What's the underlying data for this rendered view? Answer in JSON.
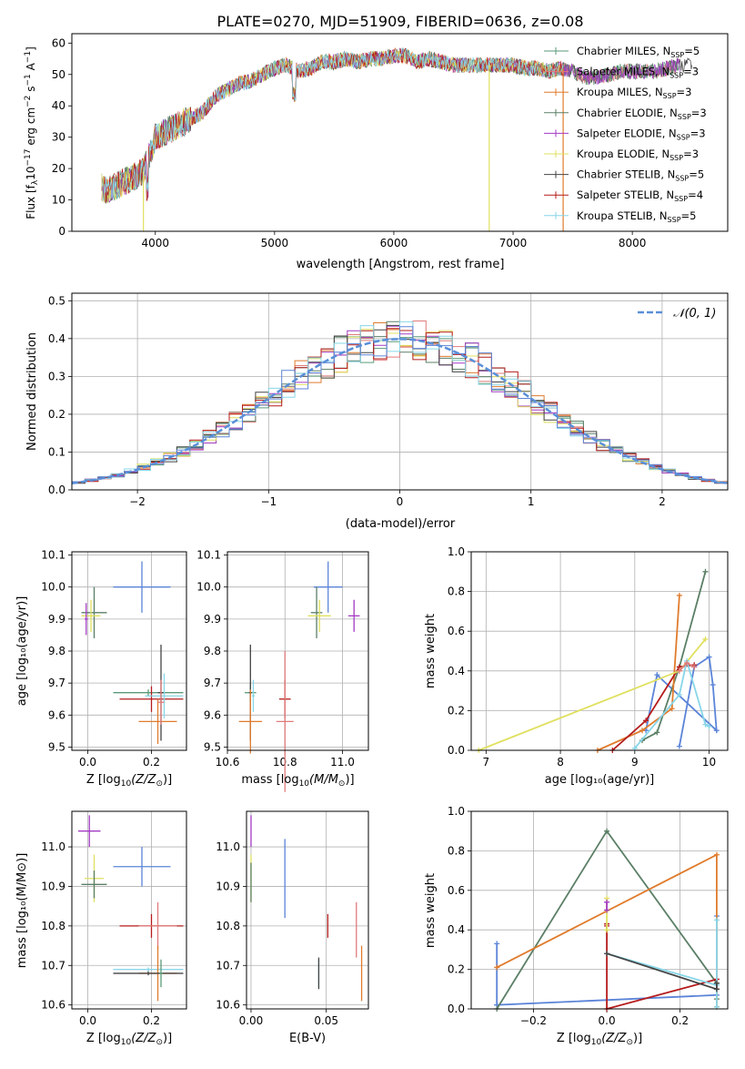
{
  "figure_title": "PLATE=0270, MJD=51909, FIBERID=0636, z=0.08",
  "chart_data": [
    {
      "id": "spectrum",
      "type": "line",
      "xlabel": "wavelength [Angstrom, rest frame]",
      "ylabel_main": "Flux [f",
      "ylabel_sub": "λ",
      "ylabel_mid": "10",
      "ylabel_sup": "−17",
      "ylabel_end": " erg cm",
      "ylabel_sup2": "−2",
      "ylabel_end2": " s",
      "ylabel_sup3": "−1",
      "ylabel_end3": " A",
      "ylabel_sup4": "−1",
      "ylabel_close": "]",
      "xlim": [
        3300,
        8800
      ],
      "ylim": [
        0,
        63
      ],
      "xticks": [
        4000,
        5000,
        6000,
        7000,
        8000
      ],
      "yticks": [
        0,
        10,
        20,
        30,
        40,
        50,
        60
      ],
      "observed_envelope": {
        "x": [
          3550,
          3600,
          3700,
          3800,
          3900,
          3950,
          4000,
          4100,
          4200,
          4300,
          4400,
          4500,
          4600,
          4700,
          4800,
          4900,
          5000,
          5100,
          5200,
          5300,
          5400,
          5500,
          5600,
          5700,
          5800,
          5900,
          6000,
          6100,
          6200,
          6300,
          6400,
          6500,
          6600,
          6700,
          6800,
          6900,
          7000,
          7100,
          7200,
          7300,
          7400,
          7500,
          7600,
          7700,
          7800,
          7900,
          8000,
          8100,
          8200,
          8300,
          8400,
          8500
        ],
        "y": [
          14,
          13,
          15,
          17,
          19,
          24,
          30,
          32,
          34,
          36,
          38,
          43,
          45,
          47,
          48,
          50,
          52,
          53,
          51,
          52,
          54,
          54,
          55,
          54,
          55,
          55,
          56,
          56,
          54,
          55,
          54,
          53,
          53,
          53,
          53,
          53,
          53,
          52,
          52,
          51,
          52,
          51,
          49,
          49,
          50,
          51,
          51,
          51,
          51,
          52,
          53,
          53
        ]
      },
      "series": [
        {
          "name": "Chabrier MILES, N",
          "sub": "SSP",
          "suffix": "=5",
          "color": "#5a9a7a"
        },
        {
          "name": "Salpeter MILES, N",
          "sub": "SSP",
          "suffix": "=3",
          "color": "#e07b7b"
        },
        {
          "name": "Kroupa MILES, N",
          "sub": "SSP",
          "suffix": "=3",
          "color": "#e07b2c"
        },
        {
          "name": "Chabrier ELODIE, N",
          "sub": "SSP",
          "suffix": "=3",
          "color": "#5b7f66"
        },
        {
          "name": "Salpeter ELODIE, N",
          "sub": "SSP",
          "suffix": "=3",
          "color": "#a33ac3"
        },
        {
          "name": "Kroupa ELODIE, N",
          "sub": "SSP",
          "suffix": "=3",
          "color": "#e0e060"
        },
        {
          "name": "Chabrier STELIB, N",
          "sub": "SSP",
          "suffix": "=5",
          "color": "#444444"
        },
        {
          "name": "Salpeter STELIB, N",
          "sub": "SSP",
          "suffix": "=4",
          "color": "#b51c1c"
        },
        {
          "name": "Kroupa STELIB, N",
          "sub": "SSP",
          "suffix": "=5",
          "color": "#87d6e8"
        }
      ],
      "dropouts": [
        {
          "x": 3900,
          "color": "#e0e060"
        },
        {
          "x": 6800,
          "color": "#e0e060"
        },
        {
          "x": 7420,
          "color": "#e07b2c"
        }
      ]
    },
    {
      "id": "residuals",
      "type": "step-histogram",
      "xlabel": "(data-model)/error",
      "ylabel": "Normed distribution",
      "xlim": [
        -2.5,
        2.5
      ],
      "ylim": [
        0,
        0.52
      ],
      "xticks": [
        -2,
        -1,
        0,
        1,
        2
      ],
      "yticks": [
        0.0,
        0.1,
        0.2,
        0.3,
        0.4,
        0.5
      ],
      "ytick_labels": [
        "0.0",
        "0.1",
        "0.2",
        "0.3",
        "0.4",
        "0.5"
      ],
      "legend_label": "𝒩(0, 1)",
      "legend_position": "top-right",
      "reference_curve": "standard normal, dashed",
      "reference_color": "#5a8fd8",
      "series_colors": [
        "#5a9a7a",
        "#e07b7b",
        "#e07b2c",
        "#5b7f66",
        "#a33ac3",
        "#e0e060",
        "#444444",
        "#b51c1c",
        "#87d6e8",
        "#5b84d8"
      ]
    },
    {
      "id": "age-vs-Z",
      "type": "errorbar",
      "xlabel_pre": "Z [log",
      "xlabel_sub": "10",
      "xlabel_post": "(Z/Z",
      "xlabel_sub2": "⊙",
      "xlabel_end": ")]",
      "ylabel": "age  [log₁₀(age/yr)]",
      "xlim": [
        -0.05,
        0.31
      ],
      "ylim": [
        9.49,
        10.11
      ],
      "xticks": [
        0.0,
        0.2
      ],
      "xtick_labels": [
        "0.0",
        "0.2"
      ],
      "yticks": [
        9.5,
        9.6,
        9.7,
        9.8,
        9.9,
        10.0,
        10.1
      ],
      "ytick_labels": [
        "9.5",
        "9.6",
        "9.7",
        "9.8",
        "9.9",
        "10.0",
        "10.1"
      ],
      "points": [
        {
          "x": 0.17,
          "y": 10.0,
          "xerr": 0.09,
          "yerr": 0.08,
          "color": "#5b84d8"
        },
        {
          "x": 0.02,
          "y": 9.92,
          "xerr": 0.04,
          "yerr": 0.08,
          "color": "#5b7f66"
        },
        {
          "x": 0.01,
          "y": 9.91,
          "xerr": 0.03,
          "yerr": 0.05,
          "color": "#e0e060"
        },
        {
          "x": -0.005,
          "y": 9.9,
          "xerr": 0.005,
          "yerr": 0.05,
          "color": "#a33ac3"
        },
        {
          "x": 0.19,
          "y": 9.67,
          "xerr": 0.11,
          "yerr": 0.01,
          "color": "#5a9a7a"
        },
        {
          "x": 0.2,
          "y": 9.65,
          "xerr": 0.1,
          "yerr": 0.04,
          "color": "#b51c1c"
        },
        {
          "x": 0.23,
          "y": 9.67,
          "xerr": 0.01,
          "yerr": 0.15,
          "color": "#444444"
        },
        {
          "x": 0.22,
          "y": 9.58,
          "xerr": 0.06,
          "yerr": 0.07,
          "color": "#e07b2c"
        },
        {
          "x": 0.24,
          "y": 9.66,
          "xerr": 0.06,
          "yerr": 0.07,
          "color": "#87d6e8"
        },
        {
          "x": 0.23,
          "y": 9.64,
          "xerr": 0.01,
          "yerr": 0.07,
          "color": "#e07b7b"
        }
      ]
    },
    {
      "id": "age-vs-mass",
      "type": "errorbar",
      "xlabel_pre": "mass [log",
      "xlabel_sub": "10",
      "xlabel_post": "(M/M",
      "xlabel_sub2": "⊙",
      "xlabel_end": ")]",
      "xlim": [
        10.6,
        11.09
      ],
      "ylim": [
        9.49,
        10.11
      ],
      "xticks": [
        10.6,
        10.8,
        11.0
      ],
      "xtick_labels": [
        "10.6",
        "10.8",
        "11.0"
      ],
      "yticks": [
        9.5,
        9.6,
        9.7,
        9.8,
        9.9,
        10.0,
        10.1
      ],
      "ytick_labels": [
        "9.5",
        "9.6",
        "9.7",
        "9.8",
        "9.9",
        "10.0",
        "10.1"
      ],
      "points": [
        {
          "x": 10.95,
          "y": 10.0,
          "xerr": 0.05,
          "yerr": 0.08,
          "color": "#5b84d8"
        },
        {
          "x": 10.91,
          "y": 9.92,
          "xerr": 0.02,
          "yerr": 0.08,
          "color": "#5b7f66"
        },
        {
          "x": 10.92,
          "y": 9.91,
          "xerr": 0.04,
          "yerr": 0.05,
          "color": "#e0e060"
        },
        {
          "x": 11.04,
          "y": 9.91,
          "xerr": 0.02,
          "yerr": 0.05,
          "color": "#a33ac3"
        },
        {
          "x": 10.68,
          "y": 9.67,
          "xerr": 0.02,
          "yerr": 0.03,
          "color": "#5a9a7a"
        },
        {
          "x": 10.8,
          "y": 9.65,
          "xerr": 0.02,
          "yerr": 0.06,
          "color": "#b51c1c"
        },
        {
          "x": 10.68,
          "y": 9.67,
          "xerr": 0.005,
          "yerr": 0.15,
          "color": "#444444"
        },
        {
          "x": 10.68,
          "y": 9.58,
          "xerr": 0.04,
          "yerr": 0.1,
          "color": "#e07b2c"
        },
        {
          "x": 10.69,
          "y": 9.66,
          "xerr": 0.005,
          "yerr": 0.05,
          "color": "#87d6e8"
        },
        {
          "x": 10.8,
          "y": 9.58,
          "xerr": 0.03,
          "yerr": 0.22,
          "color": "#e07b7b"
        }
      ]
    },
    {
      "id": "weight-vs-age",
      "type": "line",
      "xlabel": "age  [log₁₀(age/yr)]",
      "ylabel": "mass weight",
      "xlim": [
        6.8,
        10.25
      ],
      "ylim": [
        0,
        1.0
      ],
      "xticks": [
        7,
        8,
        9,
        10
      ],
      "yticks": [
        0.0,
        0.2,
        0.4,
        0.6,
        0.8,
        1.0
      ],
      "ytick_labels": [
        "0.0",
        "0.2",
        "0.4",
        "0.6",
        "0.8",
        "1.0"
      ],
      "lines": [
        {
          "color": "#5b84d8",
          "x": [
            9.6,
            9.8,
            10.0,
            10.05,
            10.1,
            9.3,
            9.15
          ],
          "y": [
            0.02,
            0.42,
            0.47,
            0.33,
            0.1,
            0.38,
            0.1
          ]
        },
        {
          "color": "#5b7f66",
          "x": [
            9.1,
            9.3,
            9.6,
            9.95
          ],
          "y": [
            0.05,
            0.09,
            0.42,
            0.9
          ]
        },
        {
          "color": "#e07b2c",
          "x": [
            8.5,
            9.1,
            9.5,
            9.6
          ],
          "y": [
            0.0,
            0.1,
            0.21,
            0.78
          ]
        },
        {
          "color": "#b51c1c",
          "x": [
            8.7,
            9.15,
            9.6,
            9.8
          ],
          "y": [
            0.0,
            0.15,
            0.42,
            0.43
          ]
        },
        {
          "color": "#e0e060",
          "x": [
            6.9,
            9.6,
            9.95
          ],
          "y": [
            0.0,
            0.4,
            0.56
          ]
        },
        {
          "color": "#87d6e8",
          "x": [
            9.0,
            9.6,
            9.7,
            9.95,
            10.0
          ],
          "y": [
            0.01,
            0.28,
            0.45,
            0.13,
            0.12
          ]
        },
        {
          "color": "#e07b7b",
          "x": [
            9.6,
            9.7,
            9.8
          ],
          "y": [
            0.4,
            0.44,
            0.42
          ]
        }
      ]
    },
    {
      "id": "mass-vs-Z",
      "type": "errorbar",
      "xlabel_pre": "Z [log",
      "xlabel_sub": "10",
      "xlabel_post": "(Z/Z",
      "xlabel_sub2": "⊙",
      "xlabel_end": ")]",
      "ylabel": "mass [log₁₀(M/M⊙)]",
      "xlim": [
        -0.05,
        0.31
      ],
      "ylim": [
        10.59,
        11.09
      ],
      "xticks": [
        0.0,
        0.2
      ],
      "xtick_labels": [
        "0.0",
        "0.2"
      ],
      "yticks": [
        10.6,
        10.7,
        10.8,
        10.9,
        11.0
      ],
      "ytick_labels": [
        "10.6",
        "10.7",
        "10.8",
        "10.9",
        "11.0"
      ],
      "points": [
        {
          "x": 0.005,
          "y": 11.04,
          "xerr": 0.035,
          "yerr": 0.04,
          "color": "#a33ac3"
        },
        {
          "x": 0.17,
          "y": 10.95,
          "xerr": 0.09,
          "yerr": 0.05,
          "color": "#5b84d8"
        },
        {
          "x": 0.02,
          "y": 10.92,
          "xerr": 0.03,
          "yerr": 0.06,
          "color": "#e0e060"
        },
        {
          "x": 0.02,
          "y": 10.905,
          "xerr": 0.04,
          "yerr": 0.035,
          "color": "#5b7f66"
        },
        {
          "x": 0.2,
          "y": 10.8,
          "xerr": 0.1,
          "yerr": 0.03,
          "color": "#b51c1c"
        },
        {
          "x": 0.22,
          "y": 10.8,
          "xerr": 0.06,
          "yerr": 0.06,
          "color": "#e07b7b"
        },
        {
          "x": 0.19,
          "y": 10.69,
          "xerr": 0.11,
          "yerr": 0.005,
          "color": "#87d6e8"
        },
        {
          "x": 0.22,
          "y": 10.68,
          "xerr": 0.06,
          "yerr": 0.07,
          "color": "#e07b2c"
        },
        {
          "x": 0.19,
          "y": 10.68,
          "xerr": 0.11,
          "yerr": 0.005,
          "color": "#444444"
        },
        {
          "x": 0.23,
          "y": 10.68,
          "xerr": 0.005,
          "yerr": 0.035,
          "color": "#5a9a7a"
        }
      ]
    },
    {
      "id": "mass-vs-ebv",
      "type": "errorbar",
      "xlabel": "E(B-V)",
      "xlim": [
        -0.003,
        0.078
      ],
      "ylim": [
        10.59,
        11.09
      ],
      "xticks": [
        0.0,
        0.05
      ],
      "xtick_labels": [
        "0.00",
        "0.05"
      ],
      "yticks": [
        10.6,
        10.7,
        10.8,
        10.9,
        11.0
      ],
      "ytick_labels": [
        "10.6",
        "10.7",
        "10.8",
        "10.9",
        "11.0"
      ],
      "points": [
        {
          "x": 0.0,
          "y": 11.04,
          "xerr": 0.0,
          "yerr": 0.04,
          "color": "#a33ac3"
        },
        {
          "x": 0.0,
          "y": 10.92,
          "xerr": 0.0,
          "yerr": 0.06,
          "color": "#e0e060"
        },
        {
          "x": 0.0,
          "y": 10.91,
          "xerr": 0.0,
          "yerr": 0.05,
          "color": "#5b7f66"
        },
        {
          "x": 0.0225,
          "y": 10.92,
          "xerr": 0.0,
          "yerr": 0.1,
          "color": "#5b84d8"
        },
        {
          "x": 0.051,
          "y": 10.8,
          "xerr": 0.0,
          "yerr": 0.03,
          "color": "#b51c1c"
        },
        {
          "x": 0.045,
          "y": 10.68,
          "xerr": 0.0,
          "yerr": 0.035,
          "color": "#87d6e8"
        },
        {
          "x": 0.045,
          "y": 10.68,
          "xerr": 0.0,
          "yerr": 0.04,
          "color": "#444444"
        },
        {
          "x": 0.07,
          "y": 10.79,
          "xerr": 0.0,
          "yerr": 0.07,
          "color": "#e07b7b"
        },
        {
          "x": 0.0735,
          "y": 10.68,
          "xerr": 0.0,
          "yerr": 0.07,
          "color": "#e07b2c"
        }
      ]
    },
    {
      "id": "weight-vs-Z",
      "type": "line",
      "xlabel_pre": "Z [log",
      "xlabel_sub": "10",
      "xlabel_post": "(Z/Z",
      "xlabel_sub2": "⊙",
      "xlabel_end": ")]",
      "ylabel": "mass weight",
      "xlim": [
        -0.37,
        0.33
      ],
      "ylim": [
        0,
        1.0
      ],
      "xticks": [
        -0.2,
        0.0,
        0.2
      ],
      "xtick_labels": [
        "−0.2",
        "0.0",
        "0.2"
      ],
      "yticks": [
        0.0,
        0.2,
        0.4,
        0.6,
        0.8,
        1.0
      ],
      "ytick_labels": [
        "0.0",
        "0.2",
        "0.4",
        "0.6",
        "0.8",
        "1.0"
      ],
      "lines": [
        {
          "color": "#5b84d8",
          "x": [
            -0.3,
            -0.3,
            -0.3,
            0.3,
            0.3
          ],
          "y": [
            0.33,
            0.02,
            0.02,
            0.07,
            0.47
          ]
        },
        {
          "color": "#5b7f66",
          "x": [
            -0.3,
            0.0,
            0.3,
            0.3
          ],
          "y": [
            0.0,
            0.9,
            0.13,
            0.05
          ]
        },
        {
          "color": "#e07b2c",
          "x": [
            -0.3,
            0.3,
            0.3
          ],
          "y": [
            0.21,
            0.78,
            0.01
          ]
        },
        {
          "color": "#b51c1c",
          "x": [
            0.0,
            0.0,
            0.0,
            0.3,
            0.3
          ],
          "y": [
            0.43,
            0.42,
            0.0,
            0.15,
            0.1
          ]
        },
        {
          "color": "#e0e060",
          "x": [
            0.0,
            0.0,
            0.0
          ],
          "y": [
            0.56,
            0.5,
            0.4
          ]
        },
        {
          "color": "#87d6e8",
          "x": [
            0.0,
            0.3,
            0.3,
            0.3
          ],
          "y": [
            0.28,
            0.12,
            0.45,
            0.01
          ]
        },
        {
          "color": "#444444",
          "x": [
            0.0,
            0.3,
            0.3
          ],
          "y": [
            0.28,
            0.1,
            0.13
          ]
        },
        {
          "color": "#a33ac3",
          "x": [
            0.0,
            0.0
          ],
          "y": [
            0.54,
            0.5
          ]
        }
      ]
    }
  ]
}
